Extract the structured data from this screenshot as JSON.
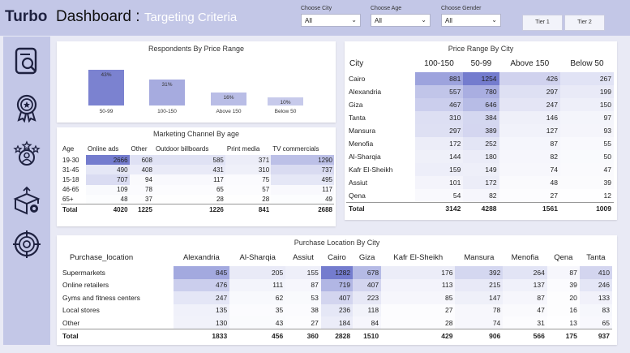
{
  "header": {
    "brand": "Turbo",
    "title": "Dashboard :",
    "subtitle": "Targeting Criteria",
    "filters": [
      {
        "label": "Choose City",
        "value": "All"
      },
      {
        "label": "Choose Age",
        "value": "All"
      },
      {
        "label": "Choose Gender",
        "value": "All"
      }
    ],
    "tiers": [
      "Tier 1",
      "Tier 2"
    ]
  },
  "sidebar": {
    "icons": [
      "search-document-icon",
      "award-ribbon-icon",
      "rating-person-icon",
      "settings-box-icon",
      "target-icon"
    ]
  },
  "respondents": {
    "title": "Respondents By Price Range",
    "chart_data": {
      "type": "bar",
      "categories": [
        "50-99",
        "100-150",
        "Above 150",
        "Below 50"
      ],
      "values": [
        43,
        31,
        16,
        10
      ],
      "value_labels": [
        "43%",
        "31%",
        "16%",
        "10%"
      ],
      "ylim": [
        0,
        43
      ],
      "colors": [
        "#7b82d0",
        "#a6abdf",
        "#b9bde6",
        "#c7caeb"
      ]
    }
  },
  "marketing": {
    "title": "Marketing Channel By age",
    "columns": [
      "Age",
      "Online ads",
      "Other",
      "Outdoor billboards",
      "Print media",
      "TV commercials"
    ],
    "rows": [
      [
        "19-30",
        "2666",
        "608",
        "585",
        "371",
        "1290"
      ],
      [
        "31-45",
        "490",
        "408",
        "431",
        "310",
        "737"
      ],
      [
        "15-18",
        "707",
        "94",
        "117",
        "75",
        "495"
      ],
      [
        "46-65",
        "109",
        "78",
        "65",
        "57",
        "117"
      ],
      [
        "65+",
        "48",
        "37",
        "28",
        "28",
        "49"
      ]
    ],
    "total": [
      "Total",
      "4020",
      "1225",
      "1226",
      "841",
      "2688"
    ]
  },
  "price_range_city": {
    "title": "Price Range By City",
    "columns": [
      "City",
      "100-150",
      "50-99",
      "Above 150",
      "Below 50"
    ],
    "rows": [
      [
        "Cairo",
        "881",
        "1254",
        "426",
        "267"
      ],
      [
        "Alexandria",
        "557",
        "780",
        "297",
        "199"
      ],
      [
        "Giza",
        "467",
        "646",
        "247",
        "150"
      ],
      [
        "Tanta",
        "310",
        "384",
        "146",
        "97"
      ],
      [
        "Mansura",
        "297",
        "389",
        "127",
        "93"
      ],
      [
        "Menofia",
        "172",
        "252",
        "87",
        "55"
      ],
      [
        "Al-Sharqia",
        "144",
        "180",
        "82",
        "50"
      ],
      [
        "Kafr El-Sheikh",
        "159",
        "149",
        "74",
        "47"
      ],
      [
        "Assiut",
        "101",
        "172",
        "48",
        "39"
      ],
      [
        "Qena",
        "54",
        "82",
        "27",
        "12"
      ]
    ],
    "total": [
      "Total",
      "3142",
      "4288",
      "1561",
      "1009"
    ]
  },
  "purchase_location": {
    "title": "Purchase Location By City",
    "columns": [
      "Purchase_location",
      "Alexandria",
      "Al-Sharqia",
      "Assiut",
      "Cairo",
      "Giza",
      "Kafr El-Sheikh",
      "Mansura",
      "Menofia",
      "Qena",
      "Tanta"
    ],
    "rows": [
      [
        "Supermarkets",
        "845",
        "205",
        "155",
        "1282",
        "678",
        "176",
        "392",
        "264",
        "87",
        "410"
      ],
      [
        "Online retailers",
        "476",
        "111",
        "87",
        "719",
        "407",
        "113",
        "215",
        "137",
        "39",
        "246"
      ],
      [
        "Gyms and fitness centers",
        "247",
        "62",
        "53",
        "407",
        "223",
        "85",
        "147",
        "87",
        "20",
        "133"
      ],
      [
        "Local stores",
        "135",
        "35",
        "38",
        "236",
        "118",
        "27",
        "78",
        "47",
        "16",
        "83"
      ],
      [
        "Other",
        "130",
        "43",
        "27",
        "184",
        "84",
        "28",
        "74",
        "31",
        "13",
        "65"
      ]
    ],
    "total": [
      "Total",
      "1833",
      "456",
      "360",
      "2828",
      "1510",
      "429",
      "906",
      "566",
      "175",
      "937"
    ]
  }
}
